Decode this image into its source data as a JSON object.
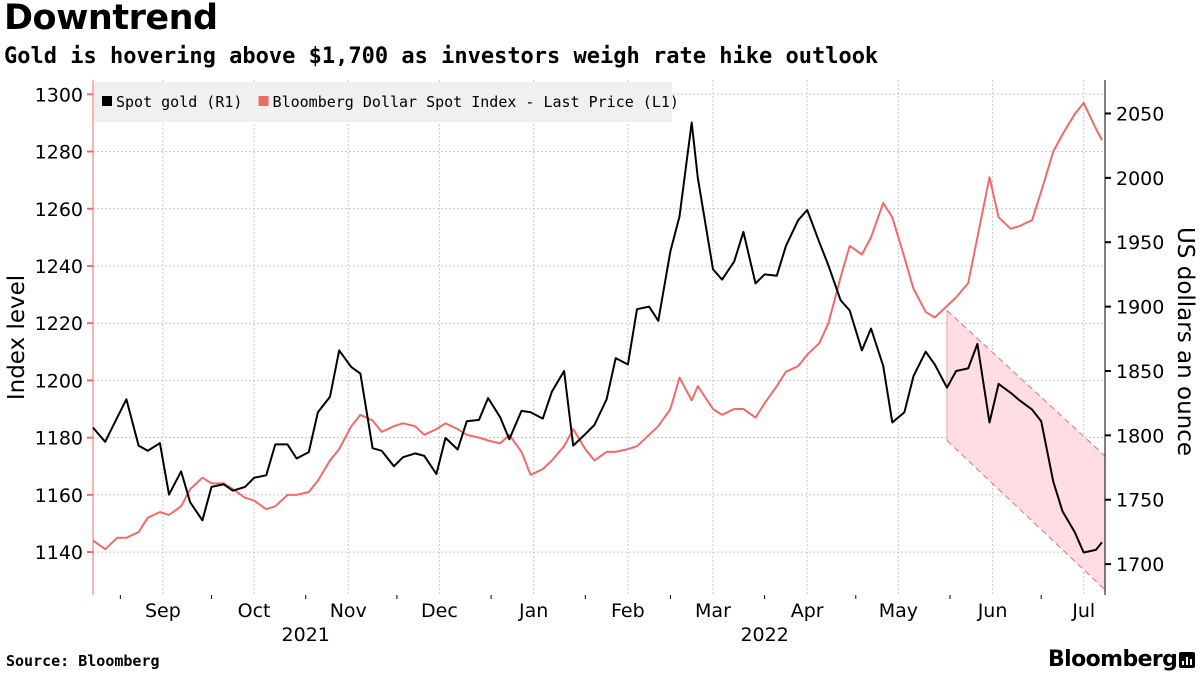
{
  "header": {
    "title": "Downtrend",
    "subtitle": "Gold is hovering above $1,700 as investors weigh rate hike outlook"
  },
  "footer": {
    "source": "Source: Bloomberg",
    "brand": "Bloomberg"
  },
  "icons": {
    "brand": "bloomberg-chart-icon"
  },
  "chart_data": {
    "type": "line",
    "start_date": "2021-08-23",
    "x_month_labels": [
      {
        "label": "Sep",
        "date": "2021-09-15"
      },
      {
        "label": "Oct",
        "date": "2021-10-15"
      },
      {
        "label": "Nov",
        "date": "2021-11-15"
      },
      {
        "label": "Dec",
        "date": "2021-12-15"
      },
      {
        "label": "Jan",
        "date": "2022-01-15"
      },
      {
        "label": "Feb",
        "date": "2022-02-15"
      },
      {
        "label": "Mar",
        "date": "2022-03-15"
      },
      {
        "label": "Apr",
        "date": "2022-04-15"
      },
      {
        "label": "May",
        "date": "2022-05-15"
      },
      {
        "label": "Jun",
        "date": "2022-06-15"
      },
      {
        "label": "Jul",
        "date": "2022-07-15"
      }
    ],
    "x_year_labels": [
      {
        "label": "2021",
        "date": "2021-11-01"
      },
      {
        "label": "2022",
        "date": "2022-04-01"
      }
    ],
    "x_month_boundaries": [
      "2021-09-01",
      "2021-10-01",
      "2021-11-01",
      "2021-12-01",
      "2022-01-01",
      "2022-02-01",
      "2022-03-01",
      "2022-04-01",
      "2022-05-01",
      "2022-06-01",
      "2022-07-01"
    ],
    "x_range": [
      "2021-08-23",
      "2022-07-22"
    ],
    "left_axis": {
      "label": "Index level",
      "range": [
        1125,
        1305
      ],
      "ticks": [
        1140,
        1160,
        1180,
        1200,
        1220,
        1240,
        1260,
        1280,
        1300
      ]
    },
    "right_axis": {
      "label": "US dollars an ounce",
      "range": [
        1676,
        2076
      ],
      "ticks": [
        1700,
        1750,
        1800,
        1850,
        1900,
        1950,
        2000,
        2050
      ]
    },
    "legend": {
      "placement": "top-left"
    },
    "grid": true,
    "series": [
      {
        "name": "Spot gold (R1)",
        "axis": "right",
        "color": "#000000",
        "points": [
          {
            "date": "2021-08-23",
            "value": 1806
          },
          {
            "date": "2021-08-27",
            "value": 1795
          },
          {
            "date": "2021-08-31",
            "value": 1814
          },
          {
            "date": "2021-09-03",
            "value": 1828
          },
          {
            "date": "2021-09-07",
            "value": 1792
          },
          {
            "date": "2021-09-10",
            "value": 1788
          },
          {
            "date": "2021-09-14",
            "value": 1794
          },
          {
            "date": "2021-09-17",
            "value": 1754
          },
          {
            "date": "2021-09-21",
            "value": 1772
          },
          {
            "date": "2021-09-24",
            "value": 1748
          },
          {
            "date": "2021-09-28",
            "value": 1734
          },
          {
            "date": "2021-10-01",
            "value": 1760
          },
          {
            "date": "2021-10-05",
            "value": 1762
          },
          {
            "date": "2021-10-08",
            "value": 1757
          },
          {
            "date": "2021-10-12",
            "value": 1760
          },
          {
            "date": "2021-10-15",
            "value": 1767
          },
          {
            "date": "2021-10-19",
            "value": 1769
          },
          {
            "date": "2021-10-22",
            "value": 1793
          },
          {
            "date": "2021-10-26",
            "value": 1793
          },
          {
            "date": "2021-10-29",
            "value": 1782
          },
          {
            "date": "2021-11-02",
            "value": 1787
          },
          {
            "date": "2021-11-05",
            "value": 1818
          },
          {
            "date": "2021-11-09",
            "value": 1830
          },
          {
            "date": "2021-11-12",
            "value": 1866
          },
          {
            "date": "2021-11-16",
            "value": 1853
          },
          {
            "date": "2021-11-19",
            "value": 1848
          },
          {
            "date": "2021-11-23",
            "value": 1790
          },
          {
            "date": "2021-11-26",
            "value": 1788
          },
          {
            "date": "2021-11-30",
            "value": 1776
          },
          {
            "date": "2021-12-03",
            "value": 1783
          },
          {
            "date": "2021-12-07",
            "value": 1786
          },
          {
            "date": "2021-12-10",
            "value": 1784
          },
          {
            "date": "2021-12-14",
            "value": 1770
          },
          {
            "date": "2021-12-17",
            "value": 1798
          },
          {
            "date": "2021-12-21",
            "value": 1789
          },
          {
            "date": "2021-12-24",
            "value": 1811
          },
          {
            "date": "2021-12-28",
            "value": 1812
          },
          {
            "date": "2021-12-31",
            "value": 1829
          },
          {
            "date": "2022-01-04",
            "value": 1814
          },
          {
            "date": "2022-01-07",
            "value": 1797
          },
          {
            "date": "2022-01-11",
            "value": 1819
          },
          {
            "date": "2022-01-14",
            "value": 1818
          },
          {
            "date": "2022-01-18",
            "value": 1813
          },
          {
            "date": "2022-01-21",
            "value": 1834
          },
          {
            "date": "2022-01-25",
            "value": 1850
          },
          {
            "date": "2022-01-28",
            "value": 1792
          },
          {
            "date": "2022-02-01",
            "value": 1801
          },
          {
            "date": "2022-02-04",
            "value": 1808
          },
          {
            "date": "2022-02-08",
            "value": 1828
          },
          {
            "date": "2022-02-11",
            "value": 1860
          },
          {
            "date": "2022-02-15",
            "value": 1855
          },
          {
            "date": "2022-02-18",
            "value": 1898
          },
          {
            "date": "2022-02-22",
            "value": 1900
          },
          {
            "date": "2022-02-25",
            "value": 1889
          },
          {
            "date": "2022-03-01",
            "value": 1943
          },
          {
            "date": "2022-03-04",
            "value": 1970
          },
          {
            "date": "2022-03-08",
            "value": 2043
          },
          {
            "date": "2022-03-10",
            "value": 2000
          },
          {
            "date": "2022-03-15",
            "value": 1929
          },
          {
            "date": "2022-03-18",
            "value": 1921
          },
          {
            "date": "2022-03-22",
            "value": 1935
          },
          {
            "date": "2022-03-25",
            "value": 1958
          },
          {
            "date": "2022-03-29",
            "value": 1918
          },
          {
            "date": "2022-04-01",
            "value": 1925
          },
          {
            "date": "2022-04-05",
            "value": 1924
          },
          {
            "date": "2022-04-08",
            "value": 1947
          },
          {
            "date": "2022-04-12",
            "value": 1967
          },
          {
            "date": "2022-04-15",
            "value": 1975
          },
          {
            "date": "2022-04-19",
            "value": 1950
          },
          {
            "date": "2022-04-22",
            "value": 1932
          },
          {
            "date": "2022-04-26",
            "value": 1905
          },
          {
            "date": "2022-04-29",
            "value": 1897
          },
          {
            "date": "2022-05-03",
            "value": 1866
          },
          {
            "date": "2022-05-06",
            "value": 1883
          },
          {
            "date": "2022-05-10",
            "value": 1854
          },
          {
            "date": "2022-05-13",
            "value": 1810
          },
          {
            "date": "2022-05-17",
            "value": 1818
          },
          {
            "date": "2022-05-20",
            "value": 1846
          },
          {
            "date": "2022-05-24",
            "value": 1865
          },
          {
            "date": "2022-05-27",
            "value": 1855
          },
          {
            "date": "2022-05-31",
            "value": 1837
          },
          {
            "date": "2022-06-03",
            "value": 1850
          },
          {
            "date": "2022-06-07",
            "value": 1852
          },
          {
            "date": "2022-06-10",
            "value": 1871
          },
          {
            "date": "2022-06-14",
            "value": 1810
          },
          {
            "date": "2022-06-17",
            "value": 1840
          },
          {
            "date": "2022-06-21",
            "value": 1833
          },
          {
            "date": "2022-06-24",
            "value": 1827
          },
          {
            "date": "2022-06-28",
            "value": 1820
          },
          {
            "date": "2022-07-01",
            "value": 1811
          },
          {
            "date": "2022-07-05",
            "value": 1764
          },
          {
            "date": "2022-07-08",
            "value": 1741
          },
          {
            "date": "2022-07-12",
            "value": 1725
          },
          {
            "date": "2022-07-15",
            "value": 1709
          },
          {
            "date": "2022-07-19",
            "value": 1711
          },
          {
            "date": "2022-07-21",
            "value": 1717
          }
        ]
      },
      {
        "name": "Bloomberg Dollar Spot Index - Last Price (L1)",
        "axis": "left",
        "color": "#ef6b6b",
        "points": [
          {
            "date": "2021-08-23",
            "value": 1144
          },
          {
            "date": "2021-08-27",
            "value": 1141
          },
          {
            "date": "2021-08-31",
            "value": 1145
          },
          {
            "date": "2021-09-03",
            "value": 1145
          },
          {
            "date": "2021-09-07",
            "value": 1147
          },
          {
            "date": "2021-09-10",
            "value": 1152
          },
          {
            "date": "2021-09-14",
            "value": 1154
          },
          {
            "date": "2021-09-17",
            "value": 1153
          },
          {
            "date": "2021-09-21",
            "value": 1156
          },
          {
            "date": "2021-09-24",
            "value": 1162
          },
          {
            "date": "2021-09-28",
            "value": 1166
          },
          {
            "date": "2021-10-01",
            "value": 1164
          },
          {
            "date": "2021-10-05",
            "value": 1164
          },
          {
            "date": "2021-10-08",
            "value": 1162
          },
          {
            "date": "2021-10-12",
            "value": 1159
          },
          {
            "date": "2021-10-15",
            "value": 1158
          },
          {
            "date": "2021-10-19",
            "value": 1155
          },
          {
            "date": "2021-10-22",
            "value": 1156
          },
          {
            "date": "2021-10-26",
            "value": 1160
          },
          {
            "date": "2021-10-29",
            "value": 1160
          },
          {
            "date": "2021-11-02",
            "value": 1161
          },
          {
            "date": "2021-11-05",
            "value": 1165
          },
          {
            "date": "2021-11-09",
            "value": 1172
          },
          {
            "date": "2021-11-12",
            "value": 1176
          },
          {
            "date": "2021-11-16",
            "value": 1184
          },
          {
            "date": "2021-11-19",
            "value": 1188
          },
          {
            "date": "2021-11-23",
            "value": 1186
          },
          {
            "date": "2021-11-26",
            "value": 1182
          },
          {
            "date": "2021-11-30",
            "value": 1184
          },
          {
            "date": "2021-12-03",
            "value": 1185
          },
          {
            "date": "2021-12-07",
            "value": 1184
          },
          {
            "date": "2021-12-10",
            "value": 1181
          },
          {
            "date": "2021-12-14",
            "value": 1183
          },
          {
            "date": "2021-12-17",
            "value": 1185
          },
          {
            "date": "2021-12-21",
            "value": 1183
          },
          {
            "date": "2021-12-24",
            "value": 1181
          },
          {
            "date": "2021-12-28",
            "value": 1180
          },
          {
            "date": "2021-12-31",
            "value": 1179
          },
          {
            "date": "2022-01-04",
            "value": 1178
          },
          {
            "date": "2022-01-07",
            "value": 1181
          },
          {
            "date": "2022-01-11",
            "value": 1175
          },
          {
            "date": "2022-01-14",
            "value": 1167
          },
          {
            "date": "2022-01-18",
            "value": 1169
          },
          {
            "date": "2022-01-21",
            "value": 1172
          },
          {
            "date": "2022-01-25",
            "value": 1177
          },
          {
            "date": "2022-01-28",
            "value": 1183
          },
          {
            "date": "2022-02-01",
            "value": 1176
          },
          {
            "date": "2022-02-04",
            "value": 1172
          },
          {
            "date": "2022-02-08",
            "value": 1175
          },
          {
            "date": "2022-02-11",
            "value": 1175
          },
          {
            "date": "2022-02-15",
            "value": 1176
          },
          {
            "date": "2022-02-18",
            "value": 1177
          },
          {
            "date": "2022-02-22",
            "value": 1181
          },
          {
            "date": "2022-02-25",
            "value": 1184
          },
          {
            "date": "2022-03-01",
            "value": 1190
          },
          {
            "date": "2022-03-04",
            "value": 1201
          },
          {
            "date": "2022-03-08",
            "value": 1193
          },
          {
            "date": "2022-03-10",
            "value": 1198
          },
          {
            "date": "2022-03-15",
            "value": 1190
          },
          {
            "date": "2022-03-18",
            "value": 1188
          },
          {
            "date": "2022-03-22",
            "value": 1190
          },
          {
            "date": "2022-03-25",
            "value": 1190
          },
          {
            "date": "2022-03-29",
            "value": 1187
          },
          {
            "date": "2022-04-01",
            "value": 1192
          },
          {
            "date": "2022-04-05",
            "value": 1198
          },
          {
            "date": "2022-04-08",
            "value": 1203
          },
          {
            "date": "2022-04-12",
            "value": 1205
          },
          {
            "date": "2022-04-15",
            "value": 1209
          },
          {
            "date": "2022-04-19",
            "value": 1213
          },
          {
            "date": "2022-04-22",
            "value": 1220
          },
          {
            "date": "2022-04-26",
            "value": 1236
          },
          {
            "date": "2022-04-29",
            "value": 1247
          },
          {
            "date": "2022-05-03",
            "value": 1244
          },
          {
            "date": "2022-05-06",
            "value": 1250
          },
          {
            "date": "2022-05-10",
            "value": 1262
          },
          {
            "date": "2022-05-13",
            "value": 1257
          },
          {
            "date": "2022-05-17",
            "value": 1243
          },
          {
            "date": "2022-05-20",
            "value": 1232
          },
          {
            "date": "2022-05-24",
            "value": 1224
          },
          {
            "date": "2022-05-27",
            "value": 1222
          },
          {
            "date": "2022-05-31",
            "value": 1226
          },
          {
            "date": "2022-06-03",
            "value": 1229
          },
          {
            "date": "2022-06-07",
            "value": 1234
          },
          {
            "date": "2022-06-10",
            "value": 1250
          },
          {
            "date": "2022-06-14",
            "value": 1271
          },
          {
            "date": "2022-06-17",
            "value": 1257
          },
          {
            "date": "2022-06-21",
            "value": 1253
          },
          {
            "date": "2022-06-24",
            "value": 1254
          },
          {
            "date": "2022-06-28",
            "value": 1256
          },
          {
            "date": "2022-07-01",
            "value": 1266
          },
          {
            "date": "2022-07-05",
            "value": 1280
          },
          {
            "date": "2022-07-08",
            "value": 1286
          },
          {
            "date": "2022-07-12",
            "value": 1293
          },
          {
            "date": "2022-07-15",
            "value": 1297
          },
          {
            "date": "2022-07-19",
            "value": 1288
          },
          {
            "date": "2022-07-21",
            "value": 1284
          }
        ]
      }
    ],
    "annotations": [
      {
        "type": "downtrend-channel",
        "axis": "right",
        "color": "#ffdde3",
        "edge_color": "#e0707f",
        "start_date": "2022-05-31",
        "end_date": "2022-07-22",
        "upper": [
          1897,
          1784
        ],
        "lower": [
          1796,
          1680
        ]
      }
    ]
  }
}
